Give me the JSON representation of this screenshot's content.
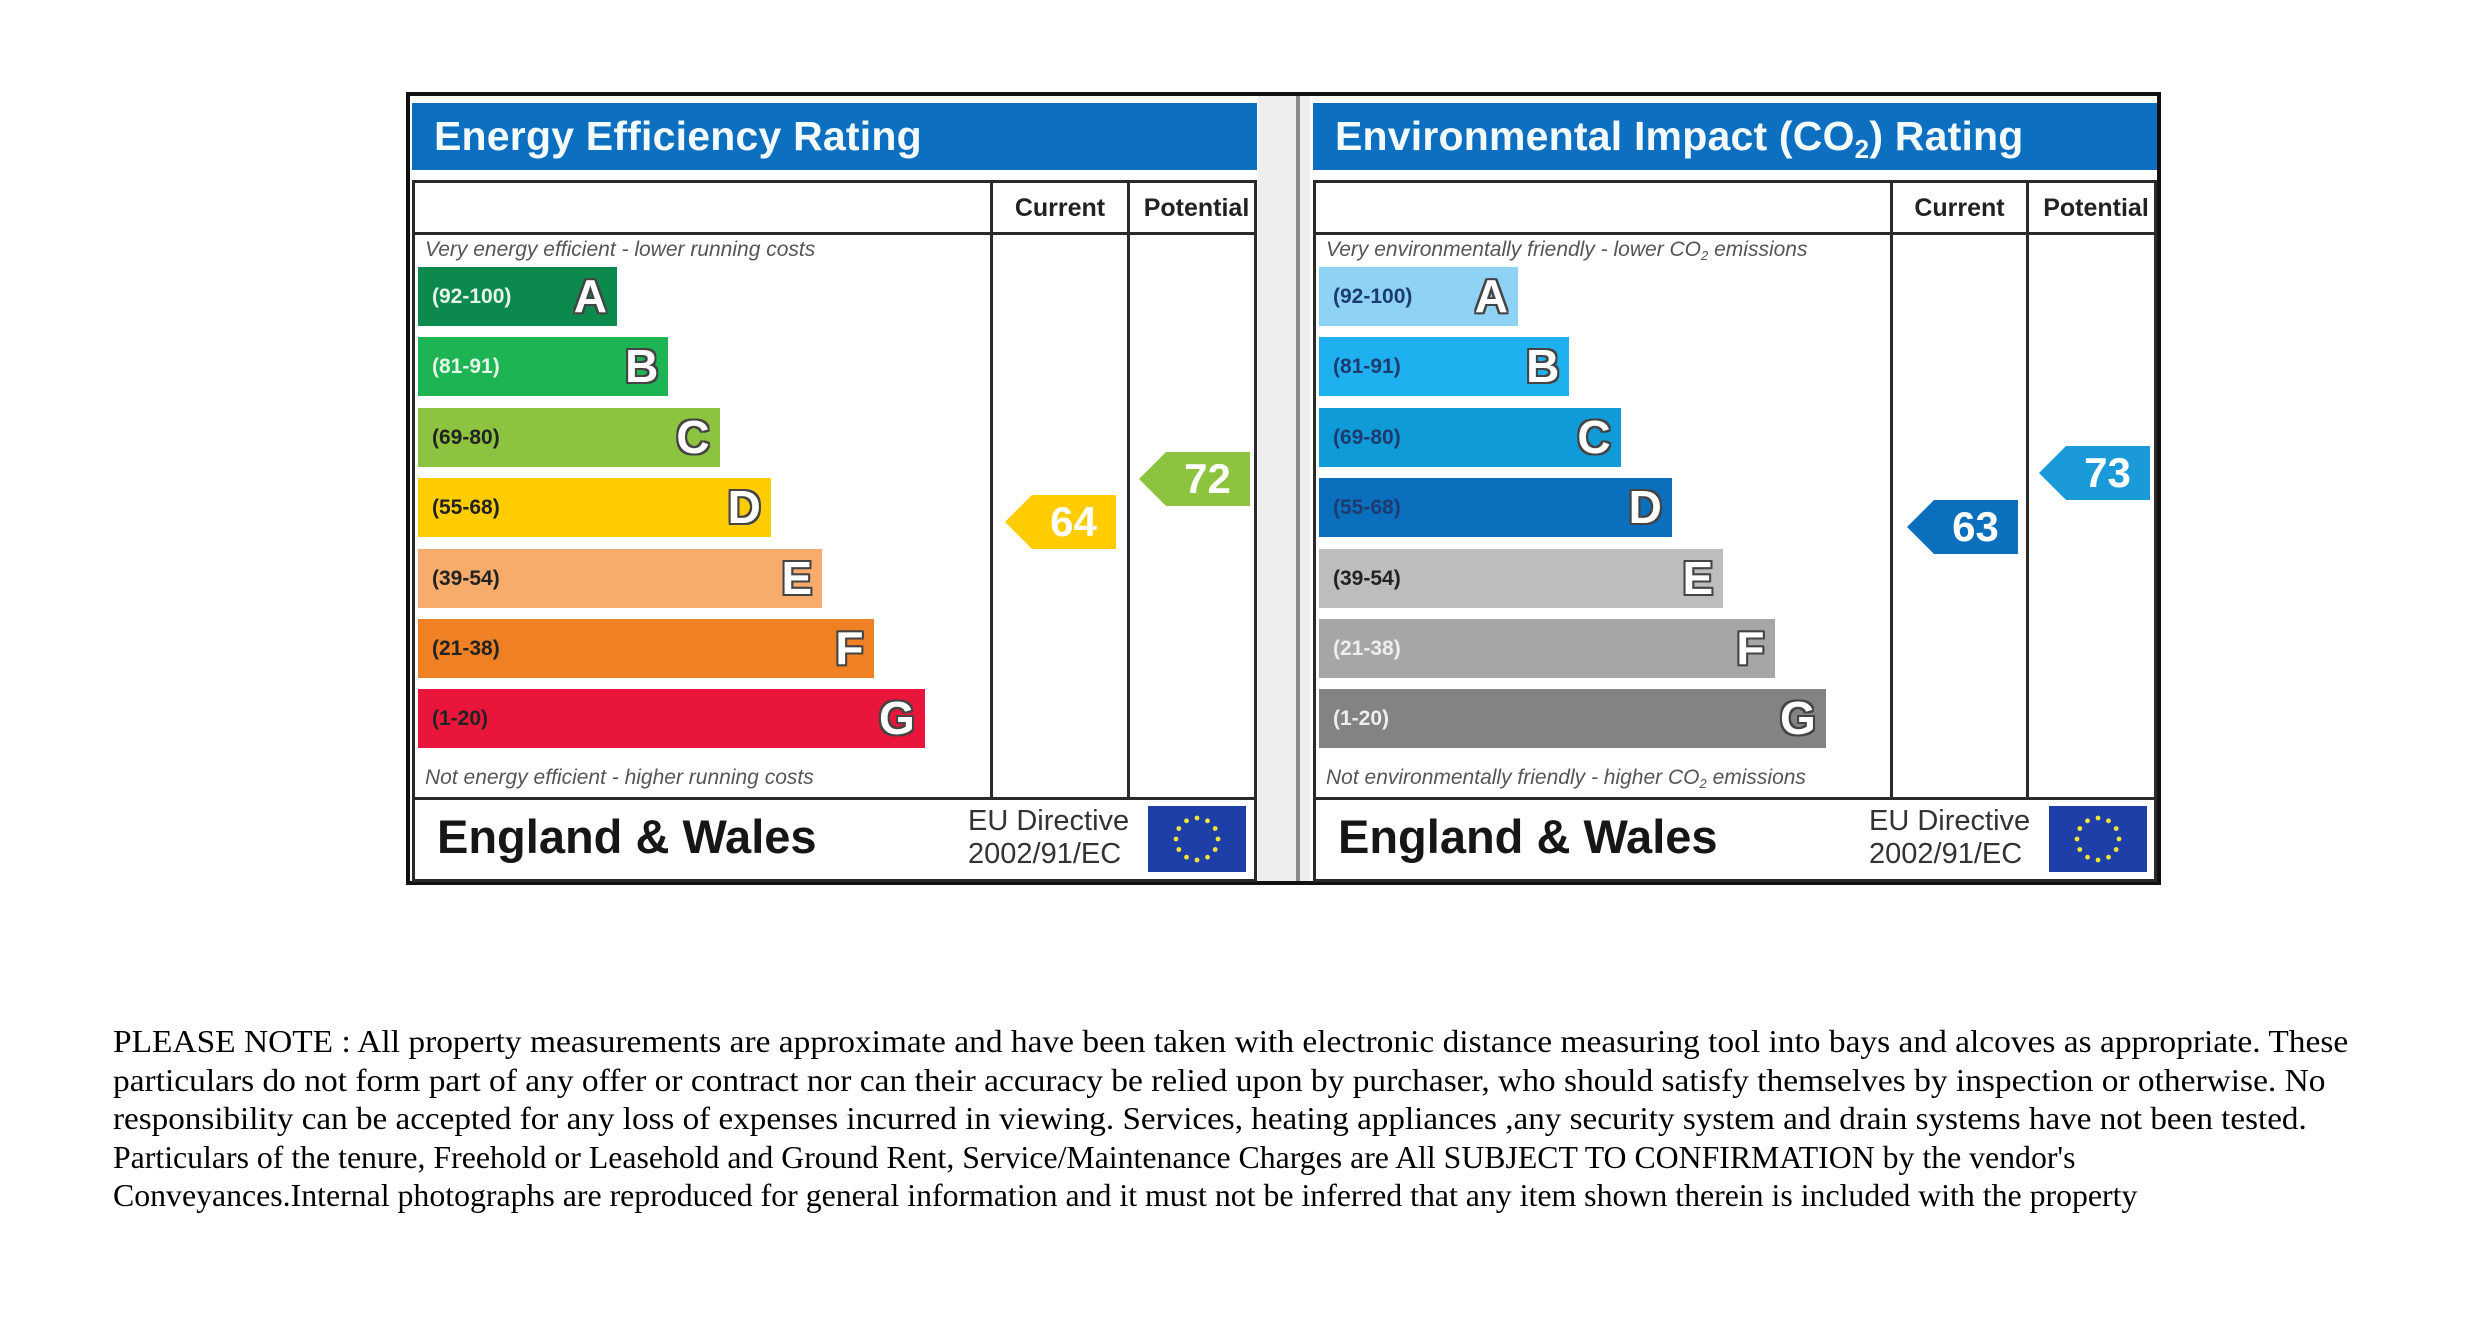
{
  "chart_data": [
    {
      "type": "bar",
      "title": "Energy Efficiency Rating",
      "column_headers": [
        "Current",
        "Potential"
      ],
      "top_caption": "Very energy efficient - lower running costs",
      "bottom_caption": "Not energy efficient - higher running costs",
      "categories": [
        "A",
        "B",
        "C",
        "D",
        "E",
        "F",
        "G"
      ],
      "ranges": [
        "(92-100)",
        "(81-91)",
        "(69-80)",
        "(55-68)",
        "(39-54)",
        "(21-38)",
        "(1-20)"
      ],
      "band_colors": [
        "#0c8a4e",
        "#1db454",
        "#8cc43f",
        "#ffcc00",
        "#f7ac6b",
        "#ef8023",
        "#e9153b"
      ],
      "range_text_colors": [
        "#e6f5ea",
        "#e6f5ea",
        "#222222",
        "#222222",
        "#222222",
        "#222222",
        "#222222"
      ],
      "current": {
        "value": 64,
        "band": "D",
        "color": "#ffcc00"
      },
      "potential": {
        "value": 72,
        "band": "C",
        "color": "#8cc43f"
      },
      "region": "England & Wales",
      "directive_line1": "EU Directive",
      "directive_line2": "2002/91/EC"
    },
    {
      "type": "bar",
      "title": "Environmental Impact (CO",
      "title_subscript": "2",
      "title_suffix": ") Rating",
      "column_headers": [
        "Current",
        "Potential"
      ],
      "top_caption": "Very environmentally friendly - lower CO",
      "top_caption_subscript": "2",
      "top_caption_suffix": " emissions",
      "bottom_caption": "Not environmentally friendly - higher CO",
      "bottom_caption_subscript": "2",
      "bottom_caption_suffix": " emissions",
      "categories": [
        "A",
        "B",
        "C",
        "D",
        "E",
        "F",
        "G"
      ],
      "ranges": [
        "(92-100)",
        "(81-91)",
        "(69-80)",
        "(55-68)",
        "(39-54)",
        "(21-38)",
        "(1-20)"
      ],
      "band_colors": [
        "#8fd3f4",
        "#1fb1ef",
        "#0f9ad8",
        "#0a6fbd",
        "#bdbdbd",
        "#a6a6a6",
        "#838383"
      ],
      "range_text_colors": [
        "#1d3b6e",
        "#1d3b6e",
        "#1d3b6e",
        "#1d3b6e",
        "#222222",
        "#eeeeee",
        "#eeeeee"
      ],
      "current": {
        "value": 63,
        "band": "D",
        "color": "#0a6fbd"
      },
      "potential": {
        "value": 73,
        "band": "C",
        "color": "#1a9ad8"
      },
      "region": "England & Wales",
      "directive_line1": "EU Directive",
      "directive_line2": "2002/91/EC"
    }
  ],
  "note": {
    "lines": [
      "PLEASE NOTE  : All property measurements are approximate and have been taken with electronic distance measuring tool into bays and alcoves as appropriate. These",
      "particulars do not form part of any offer or contract nor can their accuracy be relied upon  by purchaser, who should satisfy themselves by inspection or otherwise. No",
      "responsibility can be accepted for any loss of expenses incurred in viewing. Services, heating appliances ,any security system and drain systems have not been tested.",
      "Particulars of the tenure, Freehold or Leasehold and Ground Rent, Service/Maintenance Charges are All SUBJECT TO CONFIRMATION  by the vendor's",
      "Conveyances.Internal photographs are reproduced for general information and it must not be inferred that any item shown therein is included with the property"
    ]
  }
}
